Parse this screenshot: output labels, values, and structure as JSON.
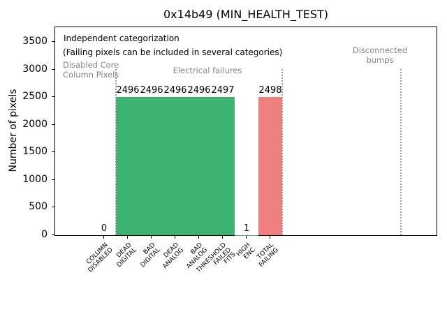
{
  "chart_data": {
    "type": "bar",
    "title": "0x14b49 (MIN_HEALTH_TEST)",
    "xlabel": "",
    "ylabel": "Number of pixels",
    "categories": [
      [
        "COLUMN",
        "DISABLED"
      ],
      [
        "DEAD",
        "DIGITAL"
      ],
      [
        "BAD",
        "DIGITAL"
      ],
      [
        "DEAD",
        "ANALOG"
      ],
      [
        "BAD",
        "ANALOG"
      ],
      [
        "THRESHOLD",
        "FAILED",
        "FITS"
      ],
      [
        "HIGH",
        "ENC"
      ],
      [
        "TOTAL",
        "FAILING"
      ]
    ],
    "values": [
      0,
      2496,
      2496,
      2496,
      2496,
      2497,
      1,
      2498
    ],
    "bar_colors": [
      "#3cb371",
      "#3cb371",
      "#3cb371",
      "#3cb371",
      "#3cb371",
      "#3cb371",
      "#3cb371",
      "#f08080"
    ],
    "yticks": [
      0,
      500,
      1000,
      1500,
      2000,
      2500,
      3000,
      3500
    ],
    "ylim": [
      0,
      3770
    ],
    "grid": false,
    "legend": "none",
    "annotations": {
      "independent": "Independent categorization",
      "failing_note": "(Failing pixels can be included in several categories)",
      "region_labels": [
        [
          "Disabled Core",
          "Column Pixels"
        ],
        [
          "Electrical failures"
        ],
        [
          "Disconnected",
          "bumps"
        ]
      ]
    },
    "separators_x_data_coords": [
      0.5,
      7.5,
      12.5
    ],
    "colors": {
      "bar_green": "#3cb371",
      "bar_red": "#f08080",
      "annotation_gray": "#848484",
      "separator_gray": "#9a9a9a"
    }
  }
}
